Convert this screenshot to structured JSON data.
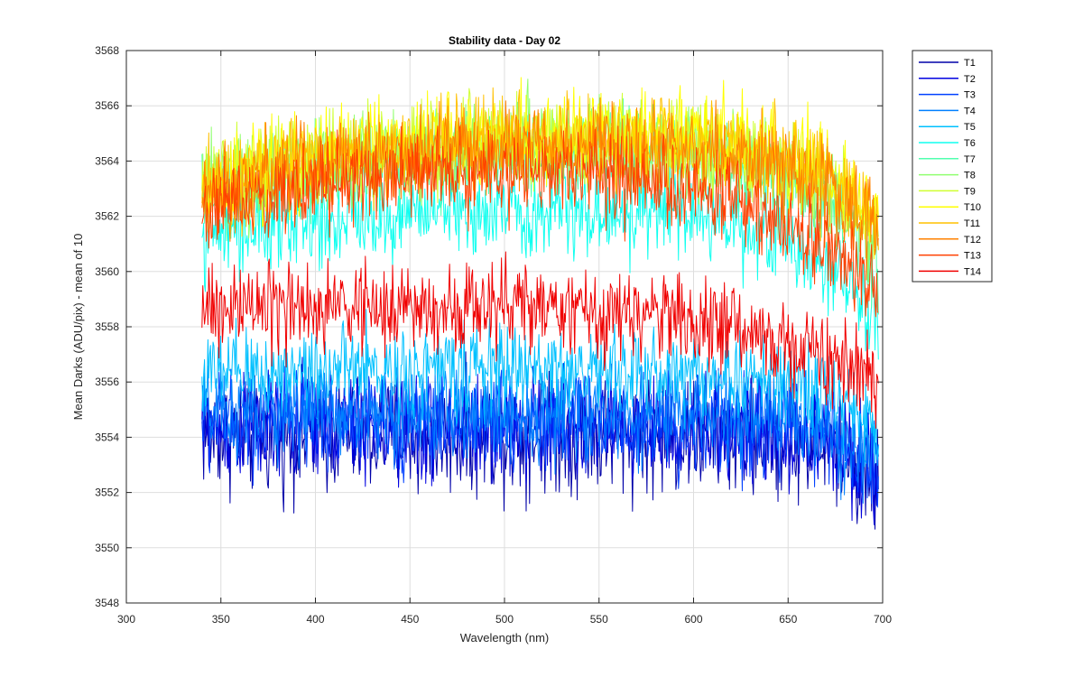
{
  "chart_data": {
    "type": "line",
    "title": "Stability data - Day 02",
    "xlabel": "Wavelength (nm)",
    "ylabel": "Mean Darks (ADU/pix) - mean of 10",
    "xlim": [
      300,
      700
    ],
    "ylim": [
      3548,
      3568
    ],
    "xticks": [
      300,
      350,
      400,
      450,
      500,
      550,
      600,
      650,
      700
    ],
    "yticks": [
      3548,
      3550,
      3552,
      3554,
      3556,
      3558,
      3560,
      3562,
      3564,
      3566,
      3568
    ],
    "grid": true,
    "legend_position": "outside-right-top",
    "x_range_data": [
      340,
      698
    ],
    "series": [
      {
        "name": "T1",
        "color": "#0000a8",
        "profile": [
          [
            340,
            3554.2
          ],
          [
            360,
            3554.0
          ],
          [
            400,
            3554.1
          ],
          [
            450,
            3554.0
          ],
          [
            500,
            3554.1
          ],
          [
            550,
            3554.1
          ],
          [
            600,
            3554.0
          ],
          [
            650,
            3553.9
          ],
          [
            670,
            3553.7
          ],
          [
            685,
            3553.0
          ],
          [
            698,
            3552.2
          ]
        ],
        "noise": 1.3
      },
      {
        "name": "T2",
        "color": "#0000e0",
        "profile": [
          [
            340,
            3554.4
          ],
          [
            360,
            3554.3
          ],
          [
            400,
            3554.4
          ],
          [
            450,
            3554.3
          ],
          [
            500,
            3554.4
          ],
          [
            550,
            3554.3
          ],
          [
            600,
            3554.3
          ],
          [
            650,
            3554.1
          ],
          [
            670,
            3553.9
          ],
          [
            685,
            3553.3
          ],
          [
            698,
            3552.5
          ]
        ],
        "noise": 1.2
      },
      {
        "name": "T3",
        "color": "#0040ff",
        "profile": [
          [
            340,
            3554.6
          ],
          [
            360,
            3554.5
          ],
          [
            400,
            3554.6
          ],
          [
            450,
            3554.5
          ],
          [
            500,
            3554.6
          ],
          [
            550,
            3554.5
          ],
          [
            600,
            3554.5
          ],
          [
            650,
            3554.3
          ],
          [
            670,
            3554.1
          ],
          [
            685,
            3553.5
          ],
          [
            698,
            3552.8
          ]
        ],
        "noise": 1.1
      },
      {
        "name": "T4",
        "color": "#0080ff",
        "profile": [
          [
            340,
            3554.9
          ],
          [
            360,
            3554.8
          ],
          [
            400,
            3554.9
          ],
          [
            450,
            3554.8
          ],
          [
            500,
            3554.9
          ],
          [
            550,
            3554.8
          ],
          [
            600,
            3554.8
          ],
          [
            650,
            3554.6
          ],
          [
            670,
            3554.3
          ],
          [
            685,
            3553.8
          ],
          [
            698,
            3553.2
          ]
        ],
        "noise": 1.0
      },
      {
        "name": "T5",
        "color": "#00c0ff",
        "profile": [
          [
            340,
            3556.2
          ],
          [
            360,
            3556.3
          ],
          [
            400,
            3556.5
          ],
          [
            450,
            3556.4
          ],
          [
            500,
            3556.5
          ],
          [
            550,
            3556.4
          ],
          [
            600,
            3556.3
          ],
          [
            650,
            3556.0
          ],
          [
            670,
            3555.6
          ],
          [
            685,
            3554.9
          ],
          [
            698,
            3554.0
          ]
        ],
        "noise": 1.0
      },
      {
        "name": "T6",
        "color": "#10ffef",
        "profile": [
          [
            340,
            3561.3
          ],
          [
            360,
            3561.5
          ],
          [
            400,
            3561.8
          ],
          [
            450,
            3562.1
          ],
          [
            500,
            3562.3
          ],
          [
            550,
            3562.2
          ],
          [
            600,
            3562.0
          ],
          [
            630,
            3561.5
          ],
          [
            650,
            3561.0
          ],
          [
            670,
            3560.2
          ],
          [
            685,
            3559.2
          ],
          [
            698,
            3558.0
          ]
        ],
        "noise": 1.0
      },
      {
        "name": "T7",
        "color": "#50ffaf",
        "profile": [
          [
            340,
            3562.8
          ],
          [
            360,
            3563.0
          ],
          [
            400,
            3563.6
          ],
          [
            450,
            3564.0
          ],
          [
            500,
            3564.3
          ],
          [
            550,
            3564.3
          ],
          [
            600,
            3564.1
          ],
          [
            630,
            3563.6
          ],
          [
            650,
            3563.1
          ],
          [
            670,
            3562.6
          ],
          [
            685,
            3561.6
          ],
          [
            698,
            3560.5
          ]
        ],
        "noise": 1.0
      },
      {
        "name": "T8",
        "color": "#90ff6f",
        "profile": [
          [
            340,
            3563.2
          ],
          [
            360,
            3563.3
          ],
          [
            400,
            3563.9
          ],
          [
            450,
            3564.3
          ],
          [
            500,
            3564.6
          ],
          [
            550,
            3564.6
          ],
          [
            600,
            3564.4
          ],
          [
            630,
            3564.0
          ],
          [
            650,
            3563.5
          ],
          [
            670,
            3563.0
          ],
          [
            685,
            3562.0
          ],
          [
            698,
            3561.0
          ]
        ],
        "noise": 1.0
      },
      {
        "name": "T9",
        "color": "#cfff30",
        "profile": [
          [
            340,
            3563.2
          ],
          [
            360,
            3563.5
          ],
          [
            400,
            3564.1
          ],
          [
            450,
            3564.5
          ],
          [
            500,
            3564.8
          ],
          [
            550,
            3564.8
          ],
          [
            600,
            3564.6
          ],
          [
            630,
            3564.2
          ],
          [
            650,
            3563.8
          ],
          [
            670,
            3563.3
          ],
          [
            685,
            3562.4
          ],
          [
            698,
            3561.4
          ]
        ],
        "noise": 1.0
      },
      {
        "name": "T10",
        "color": "#ffff00",
        "profile": [
          [
            340,
            3563.0
          ],
          [
            360,
            3563.4
          ],
          [
            400,
            3564.2
          ],
          [
            450,
            3564.7
          ],
          [
            500,
            3565.0
          ],
          [
            550,
            3565.0
          ],
          [
            600,
            3564.9
          ],
          [
            630,
            3564.5
          ],
          [
            650,
            3564.1
          ],
          [
            670,
            3563.6
          ],
          [
            685,
            3562.8
          ],
          [
            698,
            3561.8
          ]
        ],
        "noise": 1.0
      },
      {
        "name": "T11",
        "color": "#ffc000",
        "profile": [
          [
            340,
            3562.9
          ],
          [
            360,
            3563.2
          ],
          [
            400,
            3564.0
          ],
          [
            450,
            3564.5
          ],
          [
            500,
            3564.8
          ],
          [
            550,
            3564.8
          ],
          [
            600,
            3564.7
          ],
          [
            630,
            3564.3
          ],
          [
            650,
            3563.9
          ],
          [
            670,
            3563.3
          ],
          [
            685,
            3562.5
          ],
          [
            698,
            3561.5
          ]
        ],
        "noise": 1.0
      },
      {
        "name": "T12",
        "color": "#ff8000",
        "profile": [
          [
            340,
            3562.8
          ],
          [
            360,
            3563.0
          ],
          [
            400,
            3563.8
          ],
          [
            450,
            3564.3
          ],
          [
            500,
            3564.5
          ],
          [
            550,
            3564.5
          ],
          [
            600,
            3564.4
          ],
          [
            630,
            3564.0
          ],
          [
            650,
            3563.5
          ],
          [
            670,
            3563.0
          ],
          [
            685,
            3562.2
          ],
          [
            698,
            3561.2
          ]
        ],
        "noise": 1.0
      },
      {
        "name": "T13",
        "color": "#ff4000",
        "profile": [
          [
            340,
            3562.3
          ],
          [
            360,
            3562.5
          ],
          [
            400,
            3563.2
          ],
          [
            450,
            3563.5
          ],
          [
            500,
            3563.6
          ],
          [
            550,
            3563.4
          ],
          [
            600,
            3563.0
          ],
          [
            630,
            3562.4
          ],
          [
            650,
            3561.8
          ],
          [
            670,
            3561.0
          ],
          [
            685,
            3560.2
          ],
          [
            698,
            3559.4
          ]
        ],
        "noise": 1.0
      },
      {
        "name": "T14",
        "color": "#f00000",
        "profile": [
          [
            340,
            3558.6
          ],
          [
            360,
            3558.6
          ],
          [
            400,
            3558.7
          ],
          [
            450,
            3558.7
          ],
          [
            500,
            3558.7
          ],
          [
            550,
            3558.5
          ],
          [
            600,
            3558.3
          ],
          [
            630,
            3557.9
          ],
          [
            650,
            3557.4
          ],
          [
            670,
            3556.8
          ],
          [
            685,
            3556.4
          ],
          [
            698,
            3556.1
          ]
        ],
        "noise": 1.0
      }
    ]
  }
}
